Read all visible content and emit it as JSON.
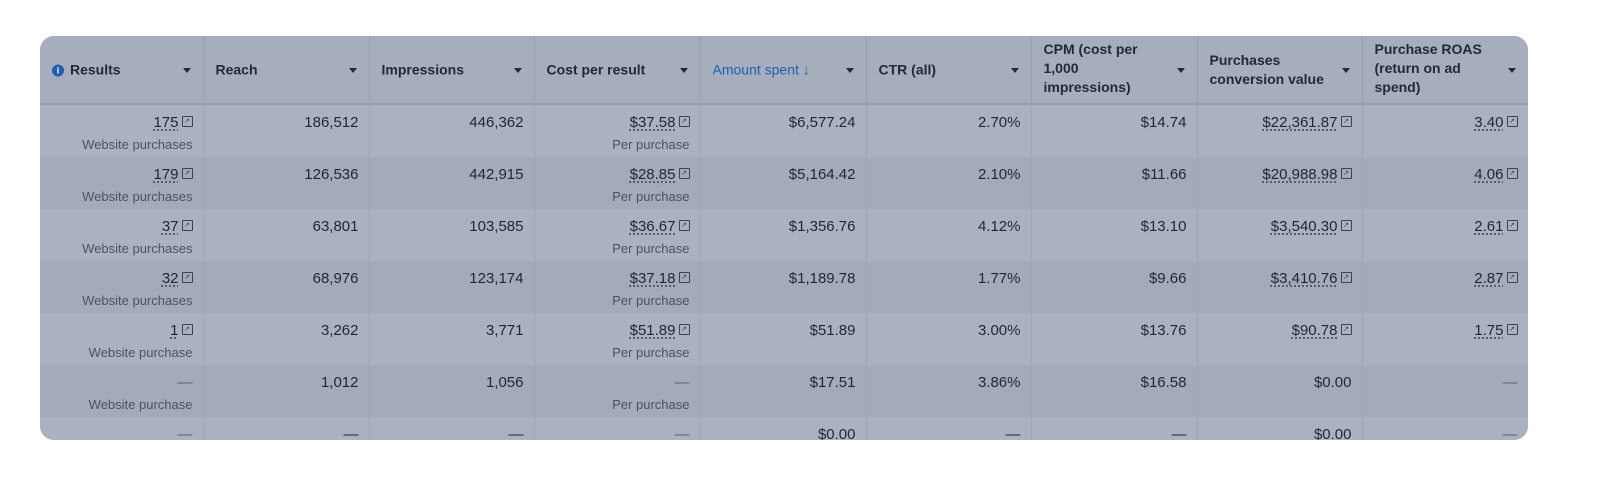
{
  "columns": [
    {
      "label": "Results"
    },
    {
      "label": "Reach"
    },
    {
      "label": "Impressions"
    },
    {
      "label": "Cost per result"
    },
    {
      "label": "Amount spent ↓"
    },
    {
      "label": "CTR (all)"
    },
    {
      "label": "CPM (cost per 1,000 impressions)"
    },
    {
      "label": "Purchases conversion value"
    },
    {
      "label": "Purchase ROAS (return on ad spend)"
    }
  ],
  "rows": [
    {
      "results": "175",
      "results_sub": "Website purchases",
      "reach": "186,512",
      "impressions": "446,362",
      "cpr": "$37.58",
      "cpr_sub": "Per purchase",
      "spent": "$6,577.24",
      "ctr": "2.70%",
      "cpm": "$14.74",
      "pcv": "$22,361.87",
      "roas": "3.40"
    },
    {
      "results": "179",
      "results_sub": "Website purchases",
      "reach": "126,536",
      "impressions": "442,915",
      "cpr": "$28.85",
      "cpr_sub": "Per purchase",
      "spent": "$5,164.42",
      "ctr": "2.10%",
      "cpm": "$11.66",
      "pcv": "$20,988.98",
      "roas": "4.06"
    },
    {
      "results": "37",
      "results_sub": "Website purchases",
      "reach": "63,801",
      "impressions": "103,585",
      "cpr": "$36.67",
      "cpr_sub": "Per purchase",
      "spent": "$1,356.76",
      "ctr": "4.12%",
      "cpm": "$13.10",
      "pcv": "$3,540.30",
      "roas": "2.61"
    },
    {
      "results": "32",
      "results_sub": "Website purchases",
      "reach": "68,976",
      "impressions": "123,174",
      "cpr": "$37.18",
      "cpr_sub": "Per purchase",
      "spent": "$1,189.78",
      "ctr": "1.77%",
      "cpm": "$9.66",
      "pcv": "$3,410.76",
      "roas": "2.87"
    },
    {
      "results": "1",
      "results_sub": "Website purchase",
      "reach": "3,262",
      "impressions": "3,771",
      "cpr": "$51.89",
      "cpr_sub": "Per purchase",
      "spent": "$51.89",
      "ctr": "3.00%",
      "cpm": "$13.76",
      "pcv": "$90.78",
      "roas": "1.75"
    },
    {
      "results": "—",
      "results_sub": "Website purchase",
      "reach": "1,012",
      "impressions": "1,056",
      "cpr": "—",
      "cpr_sub": "Per purchase",
      "spent": "$17.51",
      "ctr": "3.86%",
      "cpm": "$16.58",
      "pcv": "$0.00",
      "roas": "—"
    },
    {
      "results": "—",
      "results_sub": "",
      "reach": "—",
      "impressions": "—",
      "cpr": "—",
      "cpr_sub": "",
      "spent": "$0.00",
      "ctr": "—",
      "cpm": "—",
      "pcv": "$0.00",
      "roas": "—"
    }
  ],
  "icons": {
    "info": "info-icon",
    "sort_caret": "chevron-down-icon",
    "external": "external-link-icon"
  },
  "colors": {
    "accent": "#1b5fb8"
  }
}
